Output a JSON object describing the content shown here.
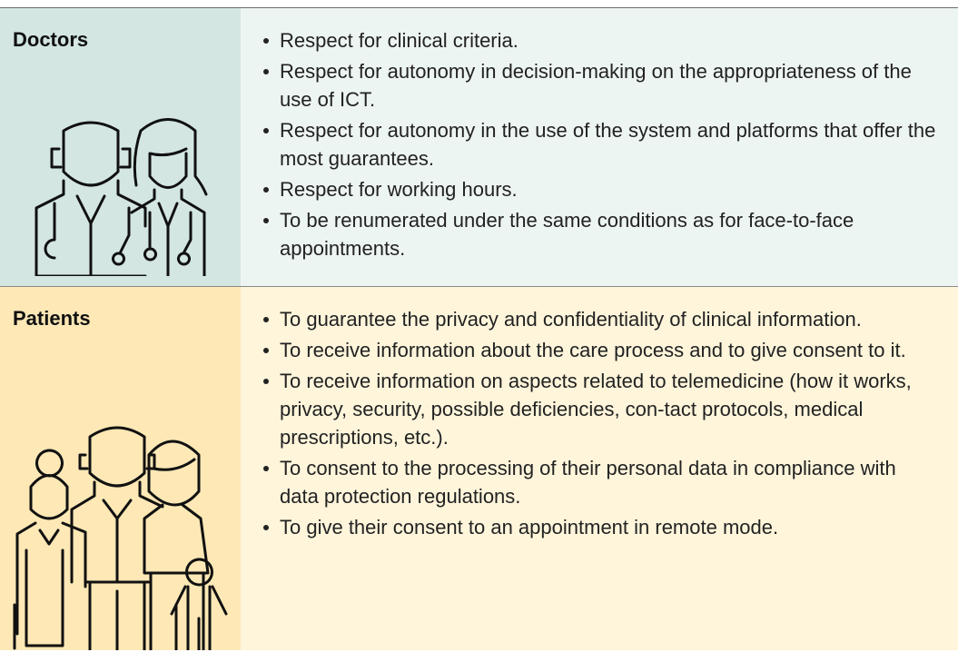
{
  "table": {
    "rows": [
      {
        "label": "Doctors",
        "items": [
          "Respect for clinical criteria.",
          "Respect for autonomy in decision-making on the appropriateness of the use of ICT.",
          "Respect for autonomy in the use of the system and platforms that offer the most guarantees.",
          "Respect for working hours.",
          "To be renumerated under the same conditions as for face-to-face appointments."
        ]
      },
      {
        "label": "Patients",
        "items": [
          "To guarantee the privacy and confidentiality of clinical information.",
          "To receive information about the care process and to give consent to it.",
          "To receive information on aspects related to telemedicine (how it works, privacy, security, possible deficiencies, con-tact protocols, medical prescriptions, etc.).",
          "To consent to the processing of their personal data in compliance with data protection regulations.",
          "To give their consent to an appointment in remote mode."
        ]
      }
    ]
  }
}
